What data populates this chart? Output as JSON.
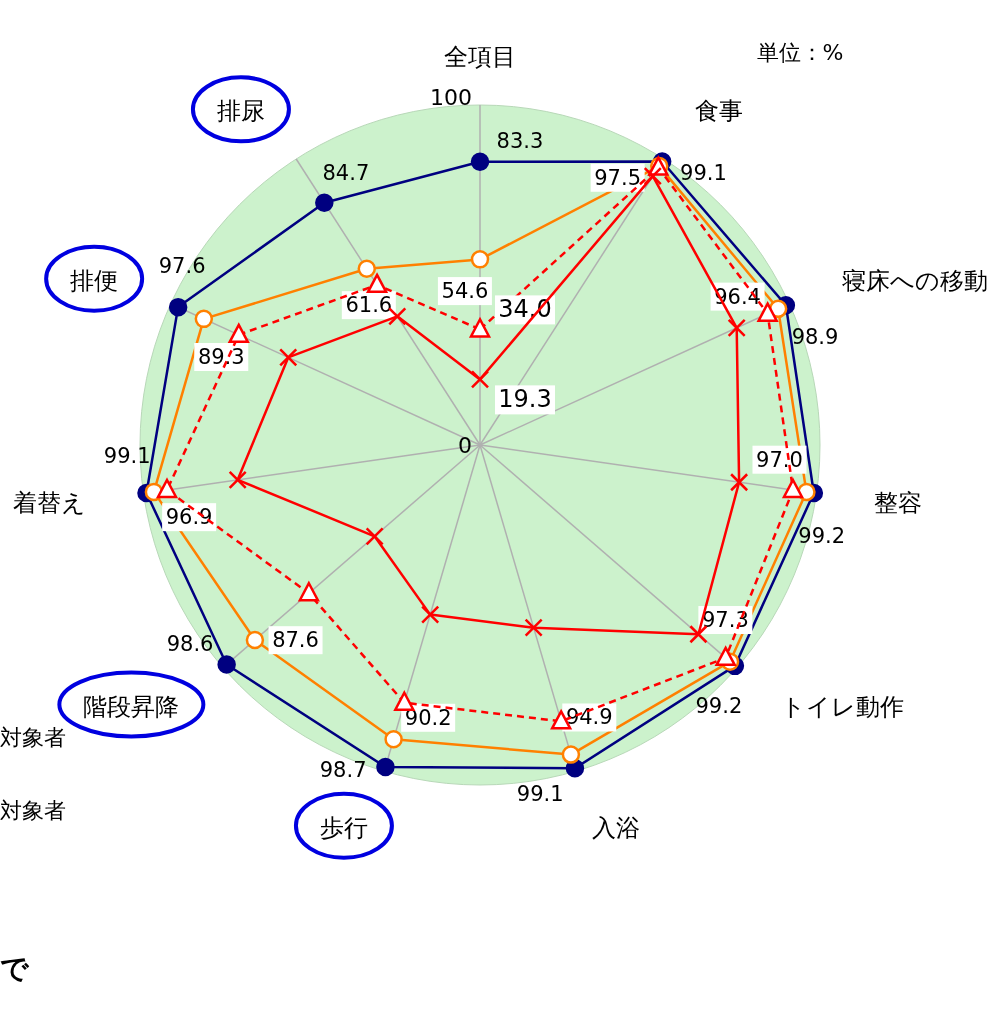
{
  "chart_data": {
    "type": "radar",
    "categories": [
      "全項目",
      "食事",
      "寝床への移動",
      "整容",
      "トイレ動作",
      "入浴",
      "歩行",
      "階段昇降",
      "着替え",
      "排便",
      "排尿"
    ],
    "ylim": [
      0,
      100
    ],
    "yticks": [
      0,
      100
    ],
    "grid": true,
    "marker": "circle",
    "line_style": "solid",
    "series": [
      {
        "color": "#000080",
        "values": [
          83.3,
          99.1,
          98.9,
          99.2,
          99.2,
          99.1,
          98.7,
          98.6,
          99.1,
          97.6,
          84.7
        ],
        "value_labels": [
          "83.3",
          "99.1",
          "98.9",
          "99.2",
          "99.2",
          "99.1",
          "98.7",
          "98.6",
          "99.1",
          "97.6",
          "84.7"
        ]
      },
      {
        "color": "#ff8000",
        "values": [
          54.6,
          97.5,
          96.4,
          97.0,
          97.3,
          94.9,
          90.2,
          87.6,
          96.9,
          89.3,
          61.6
        ],
        "value_labels": [
          "54.6",
          "97.5",
          "96.4",
          "97.0",
          "97.3",
          "94.9",
          "90.2",
          "87.6",
          "96.9",
          "89.3",
          "61.6"
        ]
      },
      {
        "color": "#ff0000",
        "marker": "triangle",
        "line_style": "dashed",
        "values": [
          34.0,
          97,
          93,
          93,
          95.6,
          84.7,
          79,
          66.6,
          93,
          78,
          56
        ],
        "value_labels": [
          "34.0",
          null,
          null,
          null,
          null,
          null,
          null,
          null,
          null,
          null,
          null
        ]
      },
      {
        "color": "#ff0000",
        "marker": "cross",
        "values": [
          19.3,
          94,
          83,
          77,
          85,
          56,
          52,
          41,
          72,
          62,
          45
        ],
        "value_labels": [
          "19.3",
          null,
          null,
          null,
          null,
          null,
          null,
          null,
          null,
          null,
          null
        ]
      }
    ],
    "annotations": [
      "単位：%",
      "対象者",
      "対象者",
      "で"
    ]
  }
}
